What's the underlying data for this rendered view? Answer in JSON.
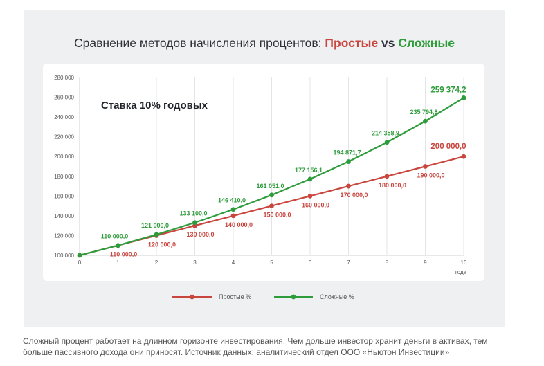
{
  "title": {
    "prefix": "Сравнение методов начисления процентов:",
    "simple": "Простые",
    "vs": "vs",
    "compound": "Сложные"
  },
  "annotation": "Ставка 10% годовых",
  "caption": "Сложный процент работает на длинном горизонте инвестирования. Чем дольше инвестор хранит деньги в активах, тем больше пассивного дохода они приносят. Источник данных: аналитический отдел ООО «Ньютон Инвестиции»",
  "colors": {
    "simple": "#c9463f",
    "compound": "#2e9c3b",
    "grid": "#e2e4e7",
    "axis": "#555555"
  },
  "chart_data": {
    "type": "line",
    "x": [
      0,
      1,
      2,
      3,
      4,
      5,
      6,
      7,
      8,
      9,
      10
    ],
    "xlabel": "года",
    "ylim": [
      100000,
      280000
    ],
    "yticks": [
      100000,
      120000,
      140000,
      160000,
      180000,
      200000,
      220000,
      240000,
      260000,
      280000
    ],
    "ytick_labels": [
      "100 000",
      "120 000",
      "140 000",
      "160 000",
      "180 000",
      "200 000",
      "220 000",
      "240 000",
      "260 000",
      "280 000"
    ],
    "grid": "vertical",
    "legend_position": "bottom",
    "series": [
      {
        "name": "Простые %",
        "values": [
          100000,
          110000,
          120000,
          130000,
          140000,
          150000,
          160000,
          170000,
          180000,
          190000,
          200000
        ],
        "labels": [
          "",
          "110 000,0",
          "120 000,0",
          "130 000,0",
          "140 000,0",
          "150 000,0",
          "160 000,0",
          "170 000,0",
          "180 000,0",
          "190 000,0",
          "200 000,0"
        ]
      },
      {
        "name": "Сложные %",
        "values": [
          100000,
          110000,
          121000,
          133100,
          146410,
          161051,
          177156.1,
          194871.7,
          214358.9,
          235794.8,
          259374.2
        ],
        "labels": [
          "",
          "110 000,0",
          "121 000,0",
          "133 100,0",
          "146 410,0",
          "161 051,0",
          "177 156,1",
          "194 871,7",
          "214 358,9",
          "235 794,8",
          "259 374,2"
        ]
      }
    ]
  }
}
